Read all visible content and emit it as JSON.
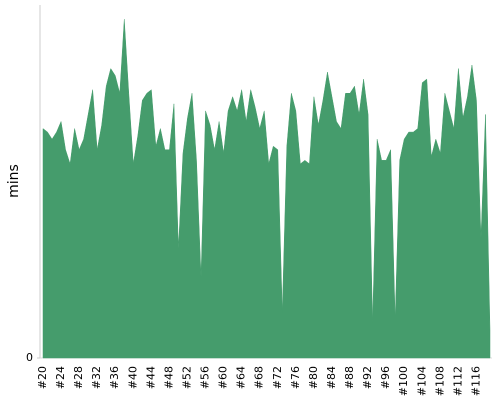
{
  "chart_data": {
    "type": "area",
    "ylabel": "mins",
    "color": "#459c6c",
    "categories": [
      "#20",
      null,
      null,
      null,
      "#24",
      null,
      null,
      null,
      "#28",
      null,
      null,
      null,
      "#32",
      null,
      null,
      null,
      "#36",
      null,
      null,
      null,
      "#40",
      null,
      null,
      null,
      "#44",
      null,
      null,
      null,
      "#48",
      null,
      null,
      null,
      "#52",
      null,
      null,
      null,
      "#56",
      null,
      null,
      null,
      "#60",
      null,
      null,
      null,
      "#64",
      null,
      null,
      null,
      "#68",
      null,
      null,
      null,
      "#72",
      null,
      null,
      null,
      "#76",
      null,
      null,
      null,
      "#80",
      null,
      null,
      null,
      "#84",
      null,
      null,
      null,
      "#88",
      null,
      null,
      null,
      "#92",
      null,
      null,
      null,
      "#96",
      null,
      null,
      null,
      "#100",
      null,
      null,
      null,
      "#104",
      null,
      null,
      null,
      "#108",
      null,
      null,
      null,
      "#112",
      null,
      null,
      null,
      "#116",
      null,
      null,
      null
    ],
    "values": [
      65,
      64,
      62,
      64,
      67,
      59,
      55,
      65,
      59,
      62,
      69,
      76,
      59,
      66,
      77,
      82,
      80,
      75,
      96,
      75,
      55,
      63,
      73,
      75,
      76,
      60,
      65,
      59,
      59,
      72,
      31,
      58,
      68,
      75,
      56,
      23,
      70,
      66,
      59,
      67,
      58,
      70,
      74,
      70,
      76,
      67,
      76,
      71,
      65,
      70,
      55,
      60,
      59,
      13,
      60,
      75,
      70,
      55,
      56,
      55,
      74,
      66,
      73,
      81,
      74,
      67,
      65,
      75,
      75,
      77,
      69,
      79,
      69,
      10,
      62,
      56,
      56,
      59,
      11,
      56,
      62,
      64,
      64,
      65,
      78,
      79,
      57,
      62,
      58,
      75,
      70,
      65,
      82,
      68,
      74,
      83,
      73,
      34,
      69,
      8
    ],
    "ylim": [
      0,
      100
    ],
    "yticks": [
      0
    ]
  }
}
